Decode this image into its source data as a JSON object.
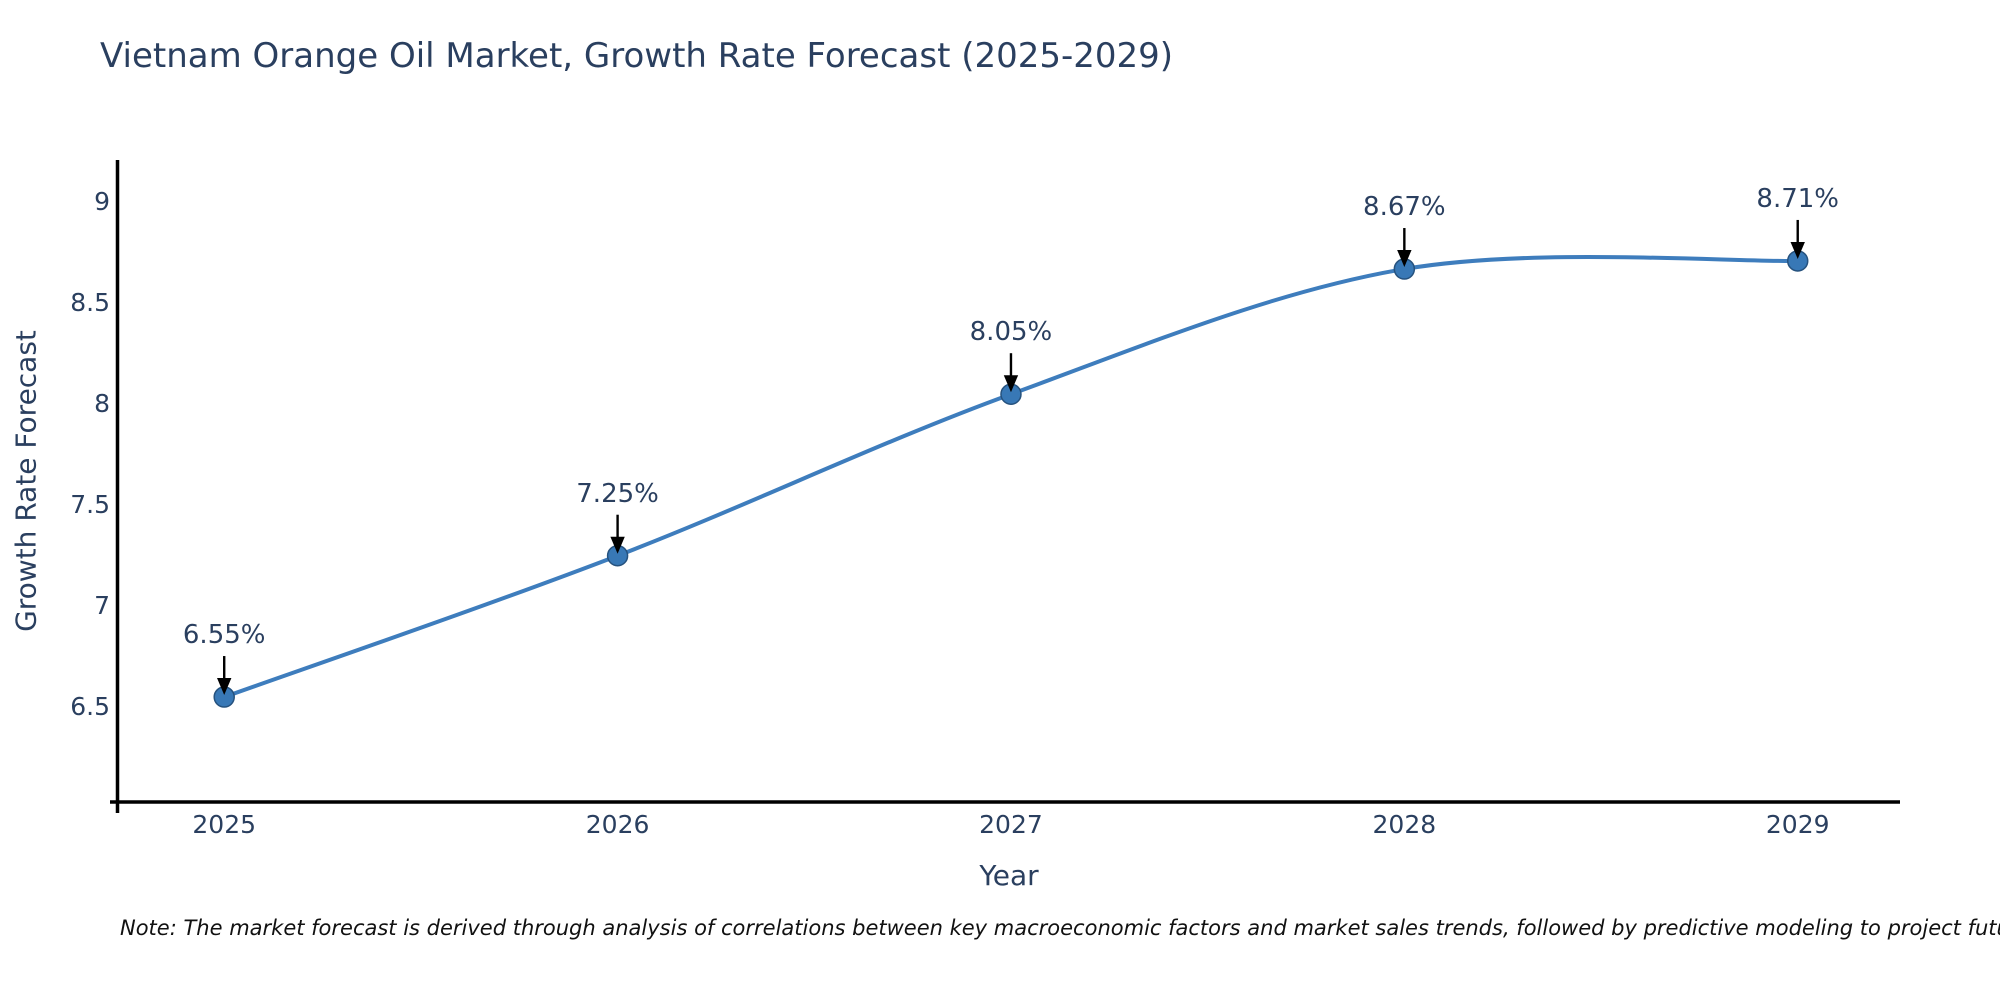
{
  "note": "Note: The market forecast is derived through analysis of correlations between key macroeconomic factors and market sales trends, followed by predictive modeling to project future sales",
  "chart_data": {
    "type": "line",
    "title": "Vietnam Orange Oil Market, Growth Rate Forecast (2025-2029)",
    "xlabel": "Year",
    "ylabel": "Growth Rate Forecast",
    "x": [
      2025,
      2026,
      2027,
      2028,
      2029
    ],
    "values": [
      6.55,
      7.25,
      8.05,
      8.67,
      8.71
    ],
    "point_labels": [
      "6.55%",
      "7.25%",
      "8.05%",
      "8.67%",
      "8.71%"
    ],
    "yticks": [
      6.5,
      7,
      7.5,
      8,
      8.5,
      9
    ],
    "xlim": [
      2024.73,
      2029.26
    ],
    "ylim": [
      6.04,
      9.21
    ],
    "grid": false,
    "legend": "none",
    "line_style": "spline",
    "marker": "circle",
    "colors": {
      "line": "#3e7dbd",
      "marker_fill": "#3878b6",
      "marker_edge": "#26527e",
      "arrow": "#000000",
      "axis": "#000000",
      "text": "#2a3f5f",
      "note_text": "#111111",
      "background": "#ffffff"
    }
  }
}
